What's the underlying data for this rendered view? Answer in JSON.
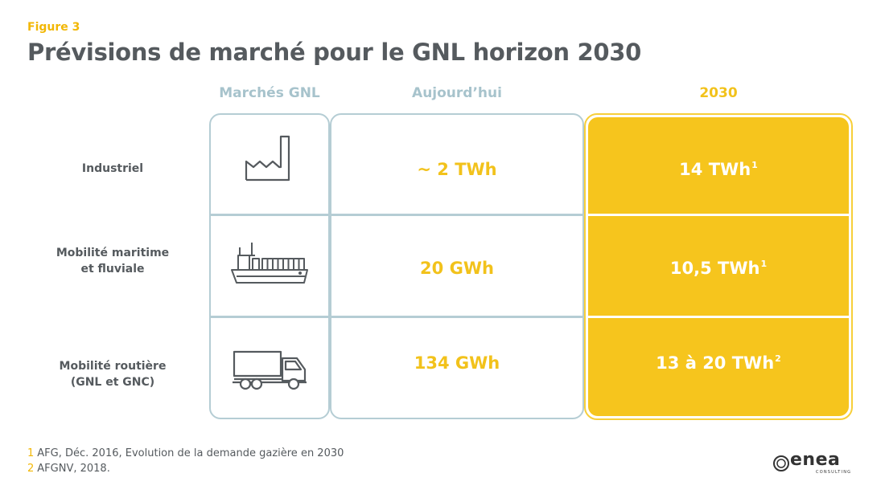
{
  "figure_label": "Figure 3",
  "title": "Prévisions de marché pour le GNL horizon 2030",
  "colors": {
    "accent": "#f6c51d",
    "frame": "#b5cdd4",
    "text": "#555a5e"
  },
  "chart_data": {
    "type": "table",
    "columns": [
      "Marchés GNL",
      "Aujourd’hui",
      "2030"
    ],
    "rows": [
      {
        "label": "Industriel",
        "label_lines": [
          "Industriel"
        ],
        "icon": "factory-icon",
        "today": "~ 2 TWh",
        "future": "14 TWh",
        "footnote_ref": "1"
      },
      {
        "label": "Mobilité maritime et fluviale",
        "label_lines": [
          "Mobilité maritime",
          "et fluviale"
        ],
        "icon": "ship-icon",
        "today": "20 GWh",
        "future": "10,5 TWh",
        "footnote_ref": "1"
      },
      {
        "label": "Mobilité routière (GNL et GNC)",
        "label_lines": [
          "Mobilité routière",
          "(GNL et GNC)"
        ],
        "icon": "truck-icon",
        "today": "134 GWh",
        "future": "13 à 20 TWh",
        "footnote_ref": "2"
      }
    ]
  },
  "footnotes": [
    {
      "num": "1",
      "text": "AFG, Déc. 2016, Evolution de la demande gazière en 2030"
    },
    {
      "num": "2",
      "text": "AFGNV, 2018."
    }
  ],
  "logo": {
    "name": "enea",
    "tagline": "CONSULTING"
  }
}
